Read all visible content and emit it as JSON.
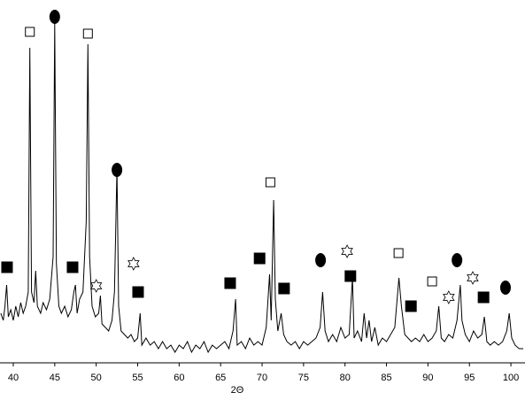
{
  "chart_data": {
    "type": "line",
    "x_label": "2Θ",
    "xlim": [
      38.4,
      101.7
    ],
    "xticks": [
      40,
      45,
      50,
      55,
      60,
      65,
      70,
      75,
      80,
      85,
      90,
      95,
      100
    ],
    "ylim": [
      0,
      100
    ],
    "color": "#000000",
    "x": [
      38.5,
      38.8,
      39.0,
      39.2,
      39.4,
      39.7,
      40.0,
      40.3,
      40.6,
      40.9,
      41.2,
      41.5,
      41.8,
      42.0,
      42.2,
      42.5,
      42.7,
      42.9,
      43.3,
      43.6,
      44.0,
      44.4,
      44.8,
      45.0,
      45.2,
      45.5,
      45.8,
      46.2,
      46.6,
      47.0,
      47.3,
      47.5,
      47.7,
      48.0,
      48.4,
      48.8,
      49.0,
      49.2,
      49.5,
      49.9,
      50.3,
      50.5,
      50.7,
      51.1,
      51.5,
      51.9,
      52.2,
      52.5,
      52.7,
      53.0,
      53.4,
      53.8,
      54.2,
      54.6,
      55.0,
      55.3,
      55.5,
      56,
      56.5,
      57,
      57.5,
      58,
      58.5,
      59,
      59.5,
      60,
      60.5,
      61,
      61.5,
      62,
      62.5,
      63,
      63.5,
      64,
      64.5,
      65,
      65.5,
      66,
      66.5,
      66.8,
      67,
      67.5,
      68,
      68.5,
      69,
      69.5,
      70,
      70.5,
      70.9,
      71.1,
      71.4,
      71.6,
      71.9,
      72.3,
      72.6,
      73,
      73.5,
      74,
      74.5,
      75,
      75.5,
      76,
      76.5,
      77,
      77.3,
      77.6,
      78,
      78.5,
      79,
      79.5,
      80,
      80.5,
      80.9,
      81.1,
      81.5,
      82,
      82.3,
      82.6,
      82.9,
      83.2,
      83.6,
      84,
      84.5,
      85,
      85.5,
      86,
      86.5,
      86.8,
      87.2,
      87.6,
      88,
      88.5,
      89,
      89.5,
      90,
      90.5,
      91,
      91.3,
      91.6,
      92,
      92.5,
      93,
      93.5,
      93.9,
      94.1,
      94.5,
      95,
      95.5,
      96,
      96.5,
      96.8,
      97.1,
      97.5,
      98,
      98.5,
      99,
      99.5,
      99.8,
      100.1,
      100.5,
      101,
      101.5
    ],
    "values": [
      14,
      12,
      16,
      22,
      13,
      15,
      12,
      16,
      13,
      17,
      14,
      16,
      20,
      89,
      20,
      17,
      26,
      16,
      14,
      17,
      15,
      18,
      30,
      96,
      28,
      16,
      14,
      16,
      13,
      15,
      20,
      22,
      14,
      18,
      20,
      40,
      90,
      30,
      16,
      13,
      14,
      19,
      11,
      10,
      9,
      12,
      20,
      55,
      16,
      9,
      8,
      7,
      8,
      6,
      7,
      14,
      5,
      7,
      5,
      6,
      4,
      6,
      4,
      5,
      3,
      5,
      4,
      6,
      3,
      5,
      4,
      6,
      3,
      5,
      4,
      5,
      6,
      4,
      9,
      18,
      5,
      6,
      4,
      7,
      5,
      6,
      5,
      10,
      25,
      12,
      46,
      18,
      9,
      14,
      8,
      6,
      5,
      6,
      4,
      6,
      5,
      6,
      7,
      10,
      20,
      9,
      6,
      8,
      6,
      10,
      7,
      8,
      24,
      7,
      9,
      6,
      14,
      7,
      12,
      6,
      10,
      5,
      7,
      6,
      8,
      10,
      24,
      16,
      8,
      7,
      6,
      7,
      6,
      8,
      6,
      7,
      9,
      16,
      7,
      6,
      8,
      7,
      12,
      22,
      12,
      8,
      6,
      9,
      7,
      8,
      13,
      6,
      5,
      6,
      5,
      6,
      9,
      14,
      7,
      5,
      4,
      4
    ],
    "markers": {
      "x": [
        39.25,
        42.0,
        45.0,
        49.0,
        47.15,
        50.0,
        52.5,
        54.5,
        55.05,
        66.15,
        69.7,
        71.0,
        72.65,
        77.05,
        80.25,
        80.65,
        86.45,
        87.95,
        90.5,
        92.5,
        93.5,
        95.4,
        96.7,
        99.35
      ],
      "y": [
        27,
        93.5,
        97.75,
        93,
        27,
        21.75,
        54.5,
        28,
        20,
        22.5,
        29.5,
        51,
        21,
        29,
        31.5,
        24.5,
        31,
        16,
        23,
        18.5,
        29,
        24,
        18.5,
        21.25
      ],
      "shapes": [
        "filled-square",
        "open-square",
        "filled-circle",
        "open-square",
        "filled-square",
        "star",
        "filled-circle",
        "star",
        "filled-square",
        "filled-square",
        "filled-square",
        "open-square",
        "filled-square",
        "filled-circle",
        "star",
        "filled-square",
        "open-square",
        "filled-square",
        "open-square",
        "star",
        "filled-circle",
        "star",
        "filled-square",
        "filled-circle"
      ]
    }
  }
}
